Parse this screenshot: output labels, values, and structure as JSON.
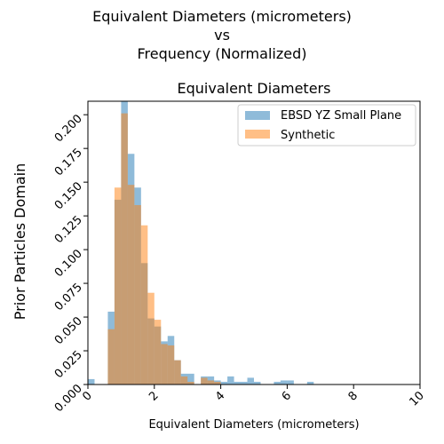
{
  "figure": {
    "suptitle_lines": [
      "Equivalent Diameters (micrometers)",
      "vs",
      "Frequency (Normalized)"
    ],
    "side_label": "Prior Particles Domain"
  },
  "chart_data": {
    "type": "bar",
    "title": "Equivalent Diameters",
    "xlabel": "Equivalent Diameters (micrometers)",
    "ylabel": "",
    "xlim": [
      0,
      10
    ],
    "ylim": [
      0,
      0.21
    ],
    "x_ticks": [
      "0",
      "2",
      "4",
      "6",
      "8",
      "10"
    ],
    "y_ticks": [
      "0.000",
      "0.025",
      "0.050",
      "0.075",
      "0.100",
      "0.125",
      "0.150",
      "0.175",
      "0.200"
    ],
    "grid": false,
    "legend_position": "top-right",
    "histogram": true,
    "series": [
      {
        "name": "EBSD YZ Small Plane",
        "color": "#1f77b4",
        "opacity": 0.5,
        "bins": [
          [
            0.0,
            0.2,
            0.004
          ],
          [
            0.6,
            0.8,
            0.054
          ],
          [
            0.8,
            1.0,
            0.137
          ],
          [
            1.0,
            1.2,
            0.21
          ],
          [
            1.2,
            1.4,
            0.171
          ],
          [
            1.4,
            1.6,
            0.146
          ],
          [
            1.6,
            1.8,
            0.09
          ],
          [
            1.8,
            2.0,
            0.049
          ],
          [
            2.0,
            2.2,
            0.043
          ],
          [
            2.2,
            2.4,
            0.032
          ],
          [
            2.4,
            2.6,
            0.036
          ],
          [
            2.6,
            2.8,
            0.018
          ],
          [
            2.8,
            3.2,
            0.008
          ],
          [
            3.4,
            3.6,
            0.006
          ],
          [
            3.6,
            3.8,
            0.006
          ],
          [
            3.8,
            4.0,
            0.003
          ],
          [
            4.0,
            4.2,
            0.002
          ],
          [
            4.2,
            4.4,
            0.006
          ],
          [
            4.4,
            4.8,
            0.002
          ],
          [
            4.8,
            5.0,
            0.005
          ],
          [
            5.0,
            5.2,
            0.002
          ],
          [
            5.6,
            5.8,
            0.002
          ],
          [
            5.8,
            6.0,
            0.003
          ],
          [
            6.0,
            6.2,
            0.003
          ],
          [
            6.6,
            6.8,
            0.002
          ]
        ]
      },
      {
        "name": "Synthetic",
        "color": "#ff7f0e",
        "opacity": 0.5,
        "bins": [
          [
            0.6,
            0.8,
            0.041
          ],
          [
            0.8,
            1.0,
            0.146
          ],
          [
            1.0,
            1.2,
            0.201
          ],
          [
            1.2,
            1.4,
            0.148
          ],
          [
            1.4,
            1.6,
            0.133
          ],
          [
            1.6,
            1.8,
            0.118
          ],
          [
            1.8,
            2.0,
            0.068
          ],
          [
            2.0,
            2.2,
            0.048
          ],
          [
            2.2,
            2.4,
            0.03
          ],
          [
            2.4,
            2.6,
            0.029
          ],
          [
            2.6,
            2.8,
            0.018
          ],
          [
            2.8,
            3.0,
            0.006
          ],
          [
            3.0,
            3.2,
            0.002
          ],
          [
            3.4,
            3.6,
            0.005
          ],
          [
            3.6,
            3.8,
            0.003
          ],
          [
            3.8,
            4.0,
            0.002
          ]
        ]
      }
    ]
  }
}
